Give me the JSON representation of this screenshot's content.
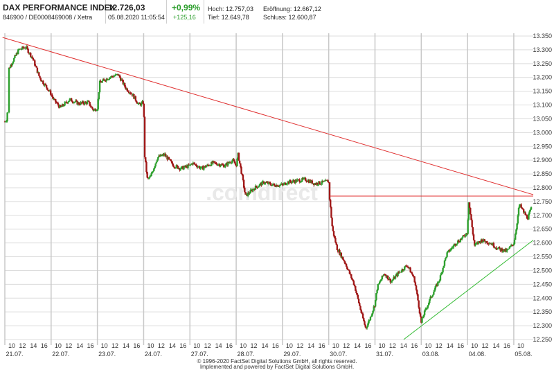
{
  "header": {
    "name": "DAX PERFORMANCE INDEX",
    "wkn_isin": "846900 / DE0008469008 / Xetra",
    "price": "12.726,03",
    "datetime": "05.08.2020 11:05:54",
    "change_pct": "+0,99%",
    "change_abs": "+125,16",
    "high": "Hoch: 12.757,03",
    "open": "Eröffnung: 12.667,12",
    "low": "Tief: 12.649,78",
    "close": "Schluss: 12.600,87"
  },
  "watermark": ".comdirect",
  "footer": {
    "line1": "© 1996-2020 FactSet Digital Solutions GmbH, all rights reserved.",
    "line2": "Implemented and powered by FactSet Digital Solutions GmbH."
  },
  "colors": {
    "up": "#2ea02e",
    "down": "#a01818",
    "resistance": "#e03030",
    "support": "#33bb33",
    "grid": "#dcdcdc"
  },
  "chart_data": {
    "type": "candlestick",
    "ylim": [
      12250,
      13350
    ],
    "y_ticks": [
      "12.250",
      "12.300",
      "12.350",
      "12.400",
      "12.450",
      "12.500",
      "12.550",
      "12.600",
      "12.650",
      "12.700",
      "12.750",
      "12.800",
      "12.850",
      "12.900",
      "12.950",
      "13.000",
      "13.050",
      "13.100",
      "13.150",
      "13.200",
      "13.250",
      "13.300",
      "13.350"
    ],
    "days": [
      {
        "date": "21.07.",
        "hour_ticks": [
          "10",
          "12",
          "14",
          "16"
        ]
      },
      {
        "date": "22.07.",
        "hour_ticks": [
          "10",
          "12",
          "14",
          "16"
        ]
      },
      {
        "date": "23.07.",
        "hour_ticks": [
          "10",
          "12",
          "14",
          "16"
        ]
      },
      {
        "date": "24.07.",
        "hour_ticks": [
          "10",
          "12",
          "14",
          "16"
        ]
      },
      {
        "date": "27.07.",
        "hour_ticks": [
          "10",
          "12",
          "14",
          "16"
        ]
      },
      {
        "date": "28.07.",
        "hour_ticks": [
          "10",
          "12",
          "14",
          "16"
        ]
      },
      {
        "date": "29.07.",
        "hour_ticks": [
          "10",
          "12",
          "14",
          "16"
        ]
      },
      {
        "date": "30.07.",
        "hour_ticks": [
          "10",
          "12",
          "14",
          "16"
        ]
      },
      {
        "date": "31.07.",
        "hour_ticks": [
          "10",
          "12",
          "14",
          "16"
        ]
      },
      {
        "date": "03.08.",
        "hour_ticks": [
          "10",
          "12",
          "14",
          "16"
        ]
      },
      {
        "date": "04.08.",
        "hour_ticks": [
          "10",
          "12",
          "14",
          "16"
        ]
      },
      {
        "date": "05.08.",
        "hour_ticks": [
          "10"
        ]
      }
    ],
    "day_boundaries": [
      [
        "20.07. close",
        "21.07. 09:00"
      ],
      [
        "21.07. 17:30",
        "22.07. 09:00"
      ],
      [
        "22.07. 17:30",
        "23.07. 09:00"
      ],
      [
        "23.07. 17:30",
        "24.07. 09:00"
      ],
      [
        "24.07. 17:30",
        "27.07. 09:00"
      ],
      [
        "27.07. 17:30",
        "28.07. 09:00"
      ],
      [
        "28.07. 17:30",
        "29.07. 09:00"
      ],
      [
        "29.07. 17:30",
        "30.07. 09:00"
      ],
      [
        "30.07. 17:30",
        "31.07. 09:00"
      ],
      [
        "31.07. 17:30",
        "03.08. 09:00"
      ],
      [
        "03.08. 17:30",
        "04.08. 09:00"
      ],
      [
        "04.08. 17:30",
        "05.08. 09:00"
      ]
    ],
    "price_path": [
      [
        0.0,
        13040
      ],
      [
        0.05,
        13050
      ],
      [
        0.08,
        13230
      ],
      [
        0.3,
        13300
      ],
      [
        0.45,
        13310
      ],
      [
        0.6,
        13270
      ],
      [
        0.75,
        13200
      ],
      [
        0.92,
        13160
      ],
      [
        1.0,
        13140
      ],
      [
        1.05,
        13120
      ],
      [
        1.2,
        13090
      ],
      [
        1.4,
        13120
      ],
      [
        1.6,
        13105
      ],
      [
        1.8,
        13110
      ],
      [
        1.92,
        13080
      ],
      [
        2.0,
        13090
      ],
      [
        2.05,
        13180
      ],
      [
        2.25,
        13200
      ],
      [
        2.45,
        13210
      ],
      [
        2.62,
        13160
      ],
      [
        2.75,
        13140
      ],
      [
        2.9,
        13100
      ],
      [
        3.0,
        13110
      ],
      [
        3.02,
        12920
      ],
      [
        3.08,
        12830
      ],
      [
        3.15,
        12840
      ],
      [
        3.3,
        12910
      ],
      [
        3.45,
        12920
      ],
      [
        3.65,
        12880
      ],
      [
        3.8,
        12870
      ],
      [
        4.0,
        12880
      ],
      [
        4.05,
        12890
      ],
      [
        4.25,
        12870
      ],
      [
        4.5,
        12890
      ],
      [
        4.75,
        12880
      ],
      [
        4.92,
        12900
      ],
      [
        5.0,
        12880
      ],
      [
        5.04,
        12920
      ],
      [
        5.12,
        12850
      ],
      [
        5.2,
        12770
      ],
      [
        5.4,
        12800
      ],
      [
        5.6,
        12820
      ],
      [
        5.8,
        12810
      ],
      [
        6.0,
        12810
      ],
      [
        6.1,
        12820
      ],
      [
        6.3,
        12825
      ],
      [
        6.5,
        12830
      ],
      [
        6.7,
        12815
      ],
      [
        6.9,
        12820
      ],
      [
        7.0,
        12825
      ],
      [
        7.02,
        12760
      ],
      [
        7.08,
        12650
      ],
      [
        7.18,
        12580
      ],
      [
        7.35,
        12530
      ],
      [
        7.55,
        12450
      ],
      [
        7.7,
        12350
      ],
      [
        7.8,
        12290
      ],
      [
        7.9,
        12330
      ],
      [
        8.0,
        12380
      ],
      [
        8.05,
        12440
      ],
      [
        8.2,
        12490
      ],
      [
        8.35,
        12460
      ],
      [
        8.5,
        12490
      ],
      [
        8.7,
        12520
      ],
      [
        8.85,
        12470
      ],
      [
        8.93,
        12390
      ],
      [
        9.0,
        12310
      ],
      [
        9.05,
        12340
      ],
      [
        9.2,
        12400
      ],
      [
        9.4,
        12470
      ],
      [
        9.55,
        12560
      ],
      [
        9.75,
        12600
      ],
      [
        9.9,
        12620
      ],
      [
        10.0,
        12640
      ],
      [
        10.02,
        12760
      ],
      [
        10.08,
        12680
      ],
      [
        10.15,
        12590
      ],
      [
        10.3,
        12610
      ],
      [
        10.5,
        12600
      ],
      [
        10.65,
        12580
      ],
      [
        10.85,
        12570
      ],
      [
        11.0,
        12600
      ],
      [
        11.05,
        12650
      ],
      [
        11.12,
        12740
      ],
      [
        11.22,
        12710
      ],
      [
        11.3,
        12690
      ],
      [
        11.38,
        12726
      ]
    ],
    "trendlines": [
      {
        "name": "resistance",
        "color": "#e03030",
        "from": [
          -0.05,
          13345
        ],
        "to": [
          11.42,
          12775
        ]
      },
      {
        "name": "horizontal",
        "color": "#e03030",
        "from": [
          7.02,
          12770
        ],
        "to": [
          11.42,
          12770
        ]
      },
      {
        "name": "support",
        "color": "#33bb33",
        "from": [
          8.62,
          12250
        ],
        "to": [
          11.42,
          12610
        ]
      }
    ]
  }
}
